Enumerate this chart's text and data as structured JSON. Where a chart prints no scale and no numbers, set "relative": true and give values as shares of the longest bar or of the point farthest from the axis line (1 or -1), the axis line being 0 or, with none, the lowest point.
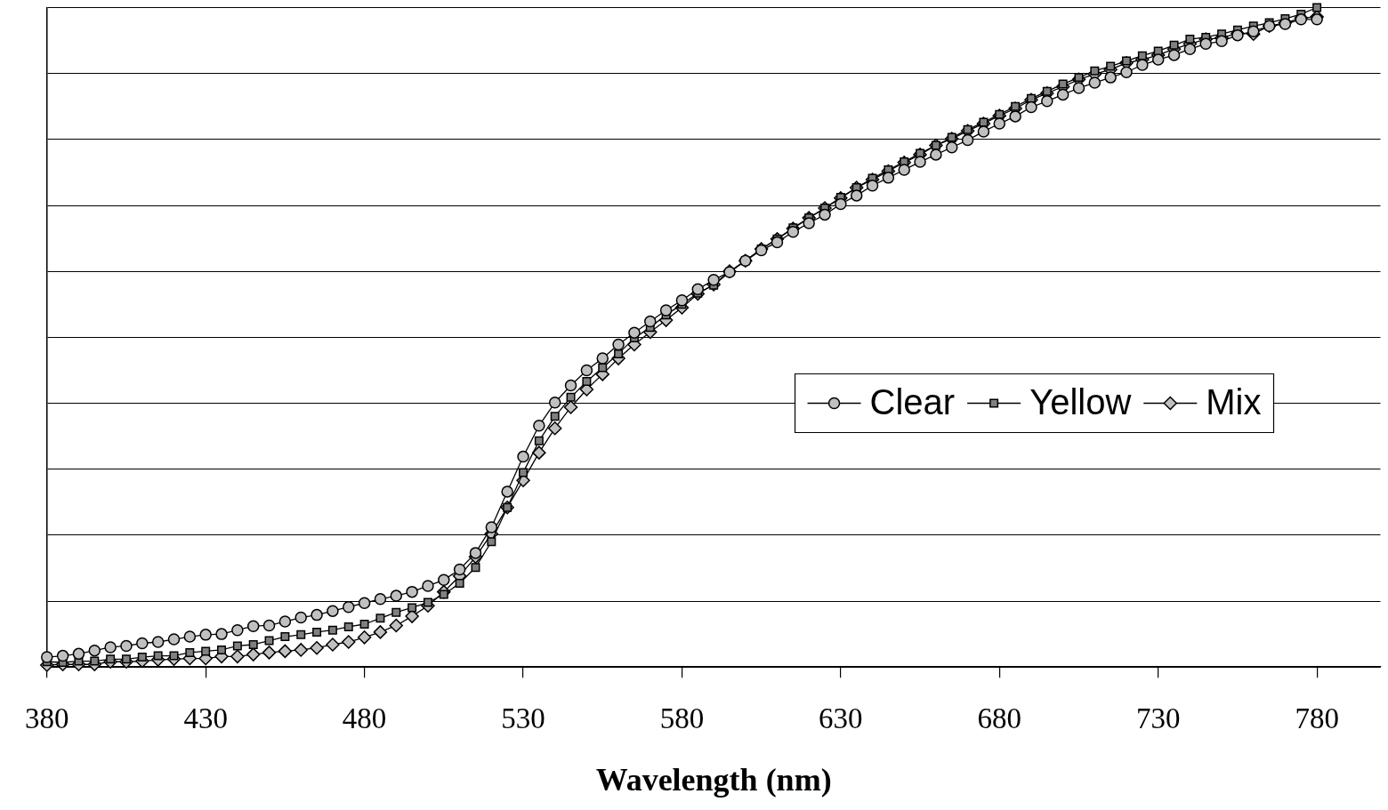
{
  "chart_data": {
    "type": "line",
    "xlabel": "Wavelength (nm)",
    "relative": true,
    "grid": "y",
    "legend": "right",
    "line_style": "solid",
    "x": [
      380,
      385,
      390,
      395,
      400,
      405,
      410,
      415,
      420,
      425,
      430,
      435,
      440,
      445,
      450,
      455,
      460,
      465,
      470,
      475,
      480,
      485,
      490,
      495,
      500,
      505,
      510,
      515,
      520,
      525,
      530,
      535,
      540,
      545,
      550,
      555,
      560,
      565,
      570,
      575,
      580,
      585,
      590,
      595,
      600,
      605,
      610,
      615,
      620,
      625,
      630,
      635,
      640,
      645,
      650,
      655,
      660,
      665,
      670,
      675,
      680,
      685,
      690,
      695,
      700,
      705,
      710,
      715,
      720,
      725,
      730,
      735,
      740,
      745,
      750,
      755,
      760,
      765,
      770,
      775,
      780
    ],
    "xlim": [
      380,
      800
    ],
    "xticks": [
      380,
      430,
      480,
      530,
      580,
      630,
      680,
      730,
      780
    ],
    "series": [
      {
        "name": "Clear",
        "color": "#c0c0c0",
        "marker": "circle",
        "values": [
          0.015,
          0.017,
          0.02,
          0.025,
          0.03,
          0.032,
          0.036,
          0.038,
          0.042,
          0.046,
          0.049,
          0.05,
          0.056,
          0.062,
          0.063,
          0.069,
          0.075,
          0.079,
          0.085,
          0.091,
          0.097,
          0.103,
          0.108,
          0.114,
          0.123,
          0.132,
          0.148,
          0.173,
          0.212,
          0.266,
          0.319,
          0.366,
          0.401,
          0.427,
          0.45,
          0.468,
          0.489,
          0.507,
          0.524,
          0.541,
          0.556,
          0.573,
          0.587,
          0.599,
          0.616,
          0.632,
          0.644,
          0.66,
          0.673,
          0.686,
          0.702,
          0.715,
          0.73,
          0.742,
          0.754,
          0.766,
          0.777,
          0.788,
          0.799,
          0.812,
          0.824,
          0.835,
          0.849,
          0.858,
          0.868,
          0.878,
          0.886,
          0.894,
          0.902,
          0.913,
          0.921,
          0.928,
          0.937,
          0.945,
          0.949,
          0.958,
          0.964,
          0.972,
          0.975,
          0.982,
          0.982
        ]
      },
      {
        "name": "Yellow",
        "color": "#808080",
        "marker": "square",
        "values": [
          0.008,
          0.007,
          0.009,
          0.009,
          0.012,
          0.012,
          0.015,
          0.017,
          0.017,
          0.022,
          0.024,
          0.026,
          0.032,
          0.034,
          0.04,
          0.046,
          0.049,
          0.053,
          0.056,
          0.061,
          0.065,
          0.074,
          0.083,
          0.09,
          0.098,
          0.11,
          0.127,
          0.151,
          0.19,
          0.242,
          0.295,
          0.343,
          0.38,
          0.409,
          0.433,
          0.454,
          0.475,
          0.499,
          0.515,
          0.534,
          0.55,
          0.567,
          0.579,
          0.599,
          0.616,
          0.634,
          0.649,
          0.666,
          0.681,
          0.696,
          0.712,
          0.727,
          0.741,
          0.754,
          0.766,
          0.779,
          0.791,
          0.803,
          0.815,
          0.826,
          0.838,
          0.85,
          0.862,
          0.873,
          0.884,
          0.894,
          0.904,
          0.911,
          0.919,
          0.927,
          0.934,
          0.943,
          0.952,
          0.955,
          0.96,
          0.966,
          0.972,
          0.977,
          0.983,
          0.99,
          1.0
        ]
      },
      {
        "name": "Mix",
        "color": "#c0c0c0",
        "marker": "diamond",
        "values": [
          0.003,
          0.004,
          0.004,
          0.004,
          0.008,
          0.008,
          0.009,
          0.011,
          0.012,
          0.013,
          0.013,
          0.016,
          0.016,
          0.019,
          0.022,
          0.024,
          0.026,
          0.029,
          0.034,
          0.038,
          0.045,
          0.053,
          0.063,
          0.077,
          0.093,
          0.114,
          0.138,
          0.167,
          0.202,
          0.242,
          0.283,
          0.325,
          0.362,
          0.394,
          0.421,
          0.444,
          0.468,
          0.489,
          0.508,
          0.526,
          0.545,
          0.566,
          0.58,
          0.6,
          0.616,
          0.634,
          0.649,
          0.665,
          0.681,
          0.696,
          0.711,
          0.727,
          0.739,
          0.752,
          0.765,
          0.777,
          0.791,
          0.801,
          0.813,
          0.824,
          0.836,
          0.847,
          0.86,
          0.87,
          0.88,
          0.891,
          0.899,
          0.906,
          0.916,
          0.921,
          0.928,
          0.937,
          0.945,
          0.952,
          0.954,
          0.961,
          0.96,
          0.972,
          0.977,
          0.984,
          0.986
        ]
      }
    ]
  }
}
